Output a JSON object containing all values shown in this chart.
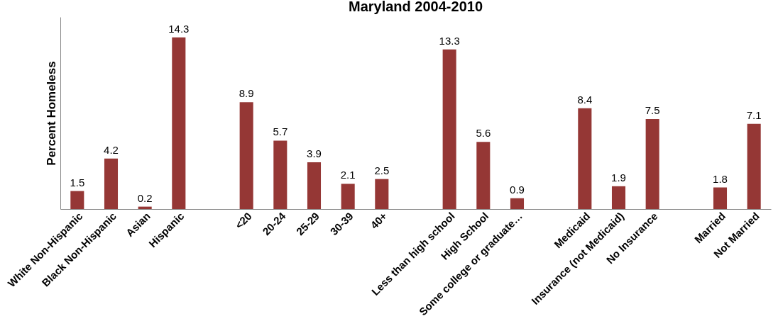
{
  "chart_data": {
    "type": "bar",
    "title": "Maryland 2004-2010",
    "ylabel": "Percent Homeless",
    "categories": [
      "White Non-Hispanic",
      "Black Non-Hispanic",
      "Asian",
      "Hispanic",
      null,
      "<20",
      "20-24",
      "25-29",
      "30-39",
      "40+",
      null,
      "Less than high school",
      "High School",
      "Some college or graduate…",
      null,
      "Medicaid",
      "Insurance (not Medicaid)",
      "No Insurance",
      null,
      "Married",
      "Not Married"
    ],
    "values": [
      1.5,
      4.2,
      0.2,
      14.3,
      null,
      8.9,
      5.7,
      3.9,
      2.1,
      2.5,
      null,
      13.3,
      5.6,
      0.9,
      null,
      8.4,
      1.9,
      7.5,
      null,
      1.8,
      7.1
    ],
    "color": "#953735",
    "data_labels": true,
    "tick_labels": "x",
    "grid": false
  }
}
